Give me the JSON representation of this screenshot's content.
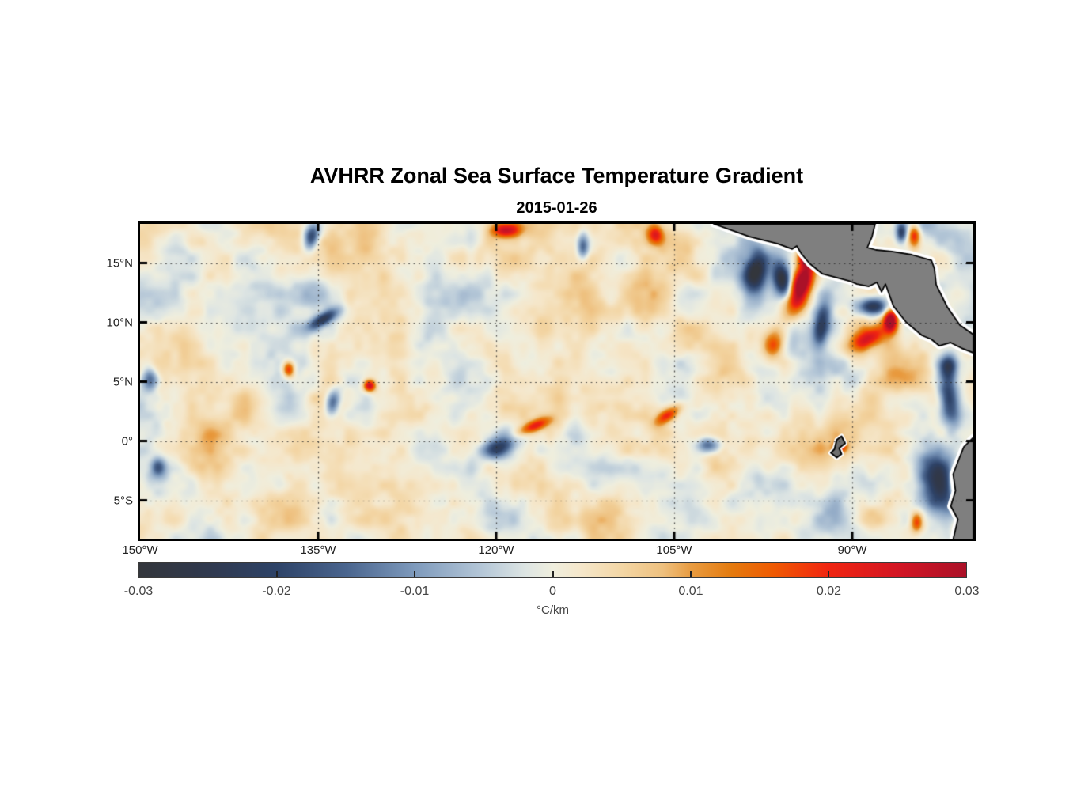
{
  "figure": {
    "title": "AVHRR Zonal Sea Surface Temperature Gradient",
    "date": "2015-01-26"
  },
  "chart_data": {
    "type": "heatmap",
    "title": "AVHRR Zonal Sea Surface Temperature Gradient",
    "subtitle": "2015-01-26",
    "variable": "zonal sea surface temperature gradient",
    "units": "°C/km",
    "lon_range": [
      -150,
      -79.8
    ],
    "lat_range": [
      18.3,
      -8.23
    ],
    "x_axis": {
      "ticks": [
        {
          "lon": -150,
          "label": "150°W"
        },
        {
          "lon": -135,
          "label": "135°W"
        },
        {
          "lon": -120,
          "label": "120°W"
        },
        {
          "lon": -105,
          "label": "105°W"
        },
        {
          "lon": -90,
          "label": "90°W"
        }
      ]
    },
    "y_axis": {
      "ticks": [
        {
          "lat": 15,
          "label": "15°N"
        },
        {
          "lat": 10,
          "label": "10°N"
        },
        {
          "lat": 5,
          "label": "5°N"
        },
        {
          "lat": 0,
          "label": "0°"
        },
        {
          "lat": -5,
          "label": "5°S"
        }
      ]
    },
    "grid": {
      "show": true,
      "style": "dotted",
      "color": "#4a4a4a",
      "lon_lines": [
        -135,
        -120,
        -105,
        -90
      ],
      "lat_lines": [
        15,
        10,
        5,
        0,
        -5
      ]
    },
    "colorbar": {
      "orientation": "horizontal",
      "range": [
        -0.03,
        0.03
      ],
      "unit": "°C/km",
      "ticks": [
        {
          "value": -0.03,
          "label": "-0.03"
        },
        {
          "value": -0.02,
          "label": "-0.02"
        },
        {
          "value": -0.01,
          "label": "-0.01"
        },
        {
          "value": 0,
          "label": "0"
        },
        {
          "value": 0.01,
          "label": "0.01"
        },
        {
          "value": 0.02,
          "label": "0.02"
        },
        {
          "value": 0.03,
          "label": "0.03"
        }
      ],
      "colormap": [
        {
          "v": -0.03,
          "c": "#33363c"
        },
        {
          "v": -0.025,
          "c": "#30394e"
        },
        {
          "v": -0.02,
          "c": "#2e4368"
        },
        {
          "v": -0.015,
          "c": "#4a658e"
        },
        {
          "v": -0.01,
          "c": "#7e9abc"
        },
        {
          "v": -0.005,
          "c": "#b6c8d8"
        },
        {
          "v": -0.002,
          "c": "#dde5e3"
        },
        {
          "v": 0.0,
          "c": "#efeede"
        },
        {
          "v": 0.002,
          "c": "#f5e7cb"
        },
        {
          "v": 0.005,
          "c": "#f3d6a5"
        },
        {
          "v": 0.008,
          "c": "#eec07e"
        },
        {
          "v": 0.01,
          "c": "#e89c42"
        },
        {
          "v": 0.013,
          "c": "#e47a0e"
        },
        {
          "v": 0.016,
          "c": "#ef5a02"
        },
        {
          "v": 0.02,
          "c": "#f02511"
        },
        {
          "v": 0.025,
          "c": "#d31523"
        },
        {
          "v": 0.03,
          "c": "#ab1128"
        }
      ]
    },
    "field": {
      "background_noise": {
        "seed": 7,
        "bias": 0.0012,
        "octaves": [
          {
            "scale": 95,
            "amp": 0.0048
          },
          {
            "scale": 46,
            "amp": 0.004
          },
          {
            "scale": 22,
            "amp": 0.0025
          },
          {
            "scale": 11,
            "amp": 0.0012
          }
        ]
      },
      "anomalies": [
        {
          "lon": -94.3,
          "lat": 13.2,
          "amp": 0.034,
          "rx": 0.85,
          "ry": 2.3,
          "rot": 18
        },
        {
          "lon": -93.95,
          "lat": 15.6,
          "amp": 0.027,
          "rx": 0.65,
          "ry": 0.8,
          "rot": 0
        },
        {
          "lon": -98.2,
          "lat": 14.2,
          "amp": -0.027,
          "rx": 0.9,
          "ry": 1.7,
          "rot": 12
        },
        {
          "lon": -95.9,
          "lat": 13.6,
          "amp": -0.03,
          "rx": 0.7,
          "ry": 1.5,
          "rot": -8
        },
        {
          "lon": -92.6,
          "lat": 9.8,
          "amp": -0.022,
          "rx": 0.7,
          "ry": 1.9,
          "rot": 8
        },
        {
          "lon": -88.3,
          "lat": 11.4,
          "amp": -0.026,
          "rx": 1.2,
          "ry": 0.7,
          "rot": 0
        },
        {
          "lon": -86.8,
          "lat": 10.2,
          "amp": 0.034,
          "rx": 0.55,
          "ry": 0.95,
          "rot": 0
        },
        {
          "lon": -88.8,
          "lat": 8.6,
          "amp": 0.021,
          "rx": 1.7,
          "ry": 0.8,
          "rot": -28
        },
        {
          "lon": -96.6,
          "lat": 8.2,
          "amp": 0.017,
          "rx": 0.8,
          "ry": 1.3,
          "rot": 10
        },
        {
          "lon": -81.9,
          "lat": 3.5,
          "amp": -0.023,
          "rx": 0.8,
          "ry": 2.2,
          "rot": -8
        },
        {
          "lon": -81.9,
          "lat": 6.3,
          "amp": -0.02,
          "rx": 0.7,
          "ry": 1.0,
          "rot": 0
        },
        {
          "lon": -82.8,
          "lat": -3.6,
          "amp": -0.026,
          "rx": 1.5,
          "ry": 3.2,
          "rot": -14
        },
        {
          "lon": -81.35,
          "lat": -3.4,
          "amp": 0.033,
          "rx": 0.38,
          "ry": 1.1,
          "rot": 0
        },
        {
          "lon": -80.9,
          "lat": -7.5,
          "amp": 0.024,
          "rx": 0.55,
          "ry": 0.65,
          "rot": 0
        },
        {
          "lon": -84.6,
          "lat": -6.8,
          "amp": 0.018,
          "rx": 0.5,
          "ry": 0.8,
          "rot": 0
        },
        {
          "lon": -119.9,
          "lat": -0.6,
          "amp": -0.021,
          "rx": 1.3,
          "ry": 0.8,
          "rot": -15
        },
        {
          "lon": -116.8,
          "lat": 1.3,
          "amp": 0.02,
          "rx": 1.5,
          "ry": 0.5,
          "rot": -22
        },
        {
          "lon": -105.6,
          "lat": 2.2,
          "amp": 0.018,
          "rx": 1.3,
          "ry": 0.55,
          "rot": -35
        },
        {
          "lon": -102.1,
          "lat": -0.3,
          "amp": -0.016,
          "rx": 1.0,
          "ry": 0.6,
          "rot": 0
        },
        {
          "lon": -130.7,
          "lat": 4.7,
          "amp": 0.027,
          "rx": 0.5,
          "ry": 0.5,
          "rot": 0
        },
        {
          "lon": -137.5,
          "lat": 6.1,
          "amp": 0.022,
          "rx": 0.5,
          "ry": 0.7,
          "rot": 0
        },
        {
          "lon": -134.6,
          "lat": 10.3,
          "amp": -0.021,
          "rx": 1.3,
          "ry": 0.5,
          "rot": -30
        },
        {
          "lon": -133.8,
          "lat": 3.3,
          "amp": -0.018,
          "rx": 0.6,
          "ry": 1.1,
          "rot": 12
        },
        {
          "lon": -149.2,
          "lat": 5.2,
          "amp": -0.018,
          "rx": 0.7,
          "ry": 0.9,
          "rot": 0
        },
        {
          "lon": -148.5,
          "lat": -2.2,
          "amp": -0.015,
          "rx": 0.6,
          "ry": 0.8,
          "rot": 0
        },
        {
          "lon": -119.2,
          "lat": 17.8,
          "amp": 0.022,
          "rx": 1.2,
          "ry": 0.6,
          "rot": 0
        },
        {
          "lon": -106.6,
          "lat": 17.4,
          "amp": 0.019,
          "rx": 0.7,
          "ry": 0.8,
          "rot": 0
        },
        {
          "lon": -135.6,
          "lat": 17.2,
          "amp": -0.022,
          "rx": 0.6,
          "ry": 1.1,
          "rot": 15
        },
        {
          "lon": -112.7,
          "lat": 16.4,
          "amp": -0.018,
          "rx": 0.5,
          "ry": 1.0,
          "rot": 0
        },
        {
          "lon": -85.9,
          "lat": 17.6,
          "amp": -0.02,
          "rx": 0.45,
          "ry": 0.8,
          "rot": 0
        },
        {
          "lon": -84.8,
          "lat": 17.3,
          "amp": 0.02,
          "rx": 0.5,
          "ry": 0.9,
          "rot": 0
        },
        {
          "lon": -91.0,
          "lat": -0.5,
          "amp": 0.018,
          "rx": 0.6,
          "ry": 0.5,
          "rot": 0
        }
      ]
    },
    "land": {
      "fill": "#7f7f7f",
      "outline": "#000000",
      "coastal_halo": "#ffffff",
      "polygons": [
        {
          "name": "central-america",
          "points": [
            [
              -101.67,
              18.3
            ],
            [
              -88.07,
              18.3
            ],
            [
              -88.33,
              17.23
            ],
            [
              -88.73,
              16.3
            ],
            [
              -88.0,
              16.1
            ],
            [
              -86.67,
              15.97
            ],
            [
              -85.0,
              15.7
            ],
            [
              -83.33,
              15.23
            ],
            [
              -83.07,
              14.5
            ],
            [
              -82.93,
              13.17
            ],
            [
              -82.0,
              11.3
            ],
            [
              -80.93,
              9.77
            ],
            [
              -79.8,
              8.97
            ],
            [
              -79.8,
              7.43
            ],
            [
              -80.8,
              7.83
            ],
            [
              -81.73,
              8.3
            ],
            [
              -82.67,
              8.03
            ],
            [
              -83.33,
              8.57
            ],
            [
              -84.13,
              8.9
            ],
            [
              -85.47,
              10.03
            ],
            [
              -86.53,
              11.37
            ],
            [
              -87.2,
              13.23
            ],
            [
              -87.53,
              12.57
            ],
            [
              -87.93,
              13.37
            ],
            [
              -88.6,
              13.03
            ],
            [
              -89.6,
              13.23
            ],
            [
              -90.27,
              13.5
            ],
            [
              -91.33,
              13.77
            ],
            [
              -92.53,
              14.1
            ],
            [
              -93.6,
              14.97
            ],
            [
              -94.27,
              15.77
            ],
            [
              -94.67,
              16.43
            ],
            [
              -95.07,
              16.17
            ],
            [
              -96.27,
              16.63
            ],
            [
              -98.67,
              17.23
            ]
          ]
        },
        {
          "name": "south-america",
          "points": [
            [
              -79.8,
              0.3
            ],
            [
              -80.6,
              -0.5
            ],
            [
              -81.0,
              -1.5
            ],
            [
              -81.5,
              -2.8
            ],
            [
              -81.3,
              -4.2
            ],
            [
              -81.7,
              -5.5
            ],
            [
              -81.1,
              -6.6
            ],
            [
              -81.5,
              -8.3
            ],
            [
              -79.8,
              -8.3
            ]
          ]
        },
        {
          "name": "galapagos-islands",
          "points": [
            [
              -91.5,
              -0.7
            ],
            [
              -91.3,
              0.1
            ],
            [
              -90.9,
              0.4
            ],
            [
              -90.6,
              -0.2
            ],
            [
              -91.1,
              -0.6
            ],
            [
              -90.9,
              -1.1
            ],
            [
              -91.3,
              -1.4
            ],
            [
              -91.8,
              -1.0
            ]
          ]
        }
      ]
    }
  }
}
